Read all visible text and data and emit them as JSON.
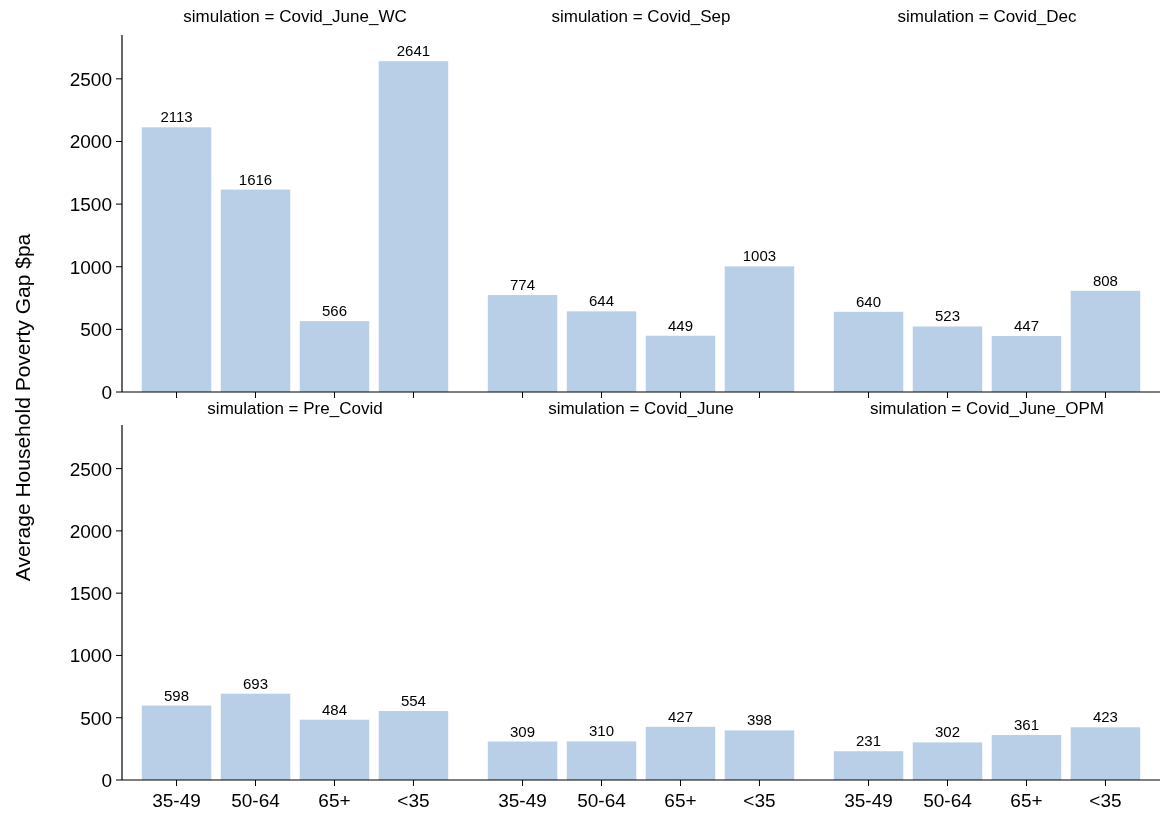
{
  "chart_data": [
    {
      "type": "bar",
      "title": "simulation = Covid_June_WC",
      "ylabel": "Average Household Poverty Gap $pa",
      "categories": [
        null,
        null,
        null,
        null
      ],
      "values": [
        2113,
        1616,
        566,
        2641
      ],
      "color": "#b9cfe8",
      "ylim": [
        0,
        2850
      ],
      "yticks": [
        0,
        500,
        1000,
        1500,
        2000,
        2500
      ],
      "data_labels": true,
      "tick_labels": "y"
    },
    {
      "type": "bar",
      "title": "simulation = Covid_Sep",
      "categories": [
        null,
        null,
        null,
        null
      ],
      "values": [
        774,
        644,
        449,
        1003
      ],
      "color": "#b9cfe8",
      "data_labels": true,
      "tick_labels": false
    },
    {
      "type": "bar",
      "title": "simulation = Covid_Dec",
      "categories": [
        null,
        null,
        null,
        null
      ],
      "values": [
        640,
        523,
        447,
        808
      ],
      "color": "#b9cfe8",
      "data_labels": true,
      "tick_labels": false
    },
    {
      "type": "bar",
      "title": "simulation = Pre_Covid",
      "categories": [
        "35-49",
        "50-64",
        "65+",
        "<35"
      ],
      "values": [
        598,
        693,
        484,
        554
      ],
      "color": "#b9cfe8",
      "ylim": [
        0,
        2850
      ],
      "yticks": [
        0,
        500,
        1000,
        1500,
        2000,
        2500
      ],
      "data_labels": true
    },
    {
      "type": "bar",
      "title": "simulation = Covid_June",
      "categories": [
        "35-49",
        "50-64",
        "65+",
        "<35"
      ],
      "values": [
        309,
        310,
        427,
        398
      ],
      "color": "#b9cfe8",
      "data_labels": true,
      "tick_labels": "x"
    },
    {
      "type": "bar",
      "title": "simulation = Covid_June_OPM",
      "categories": [
        "35-49",
        "50-64",
        "65+",
        "<35"
      ],
      "values": [
        231,
        302,
        361,
        423
      ],
      "color": "#b9cfe8",
      "data_labels": true,
      "tick_labels": "x"
    }
  ]
}
